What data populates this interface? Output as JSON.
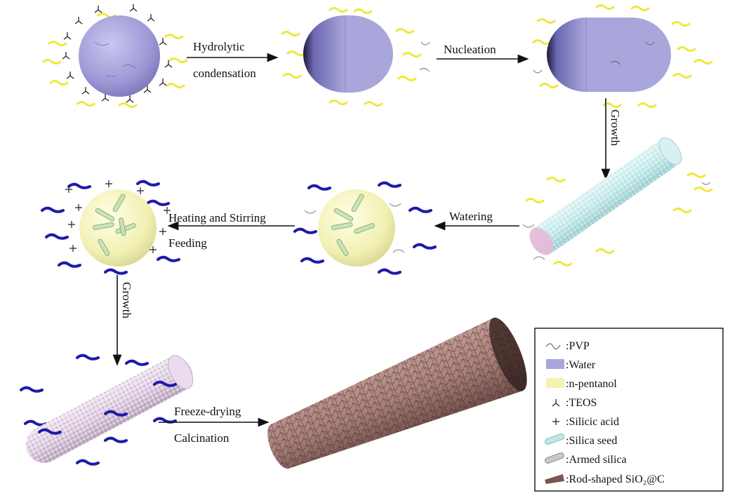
{
  "steps": {
    "hydrolytic": [
      "Hydrolytic",
      "condensation"
    ],
    "nucleation": "Nucleation",
    "growth1": "Growth",
    "watering": "Watering",
    "heating": "Heating and Stirring",
    "feeding": "Feeding",
    "growth2": "Growth",
    "freeze": "Freeze-drying",
    "calcination": "Calcination"
  },
  "legend": {
    "items": [
      {
        "icon": "pvp-icon",
        "label": ":PVP"
      },
      {
        "icon": "water-icon",
        "label": ":Water"
      },
      {
        "icon": "n-pentanol-icon",
        "label": ":n-pentanol"
      },
      {
        "icon": "teos-icon",
        "label": ":TEOS"
      },
      {
        "icon": "silicic-acid-icon",
        "label": ":Silicic acid"
      },
      {
        "icon": "silica-seed-icon",
        "label": ":Silica seed"
      },
      {
        "icon": "armed-silica-icon",
        "label": ":Armed silica"
      },
      {
        "icon": "rod-shaped-icon",
        "label": ":Rod-shaped SiO₂@C"
      }
    ]
  },
  "colors": {
    "water": "#a9a6dc",
    "pentanol": "#f3f2b4",
    "yellow_squiggle": "#f0e83a",
    "blue_squiggle": "#1e1aa8",
    "silica_seed": "#cdeeee",
    "armed_silica": "#e8d8ec",
    "rod": "#a87e78"
  }
}
